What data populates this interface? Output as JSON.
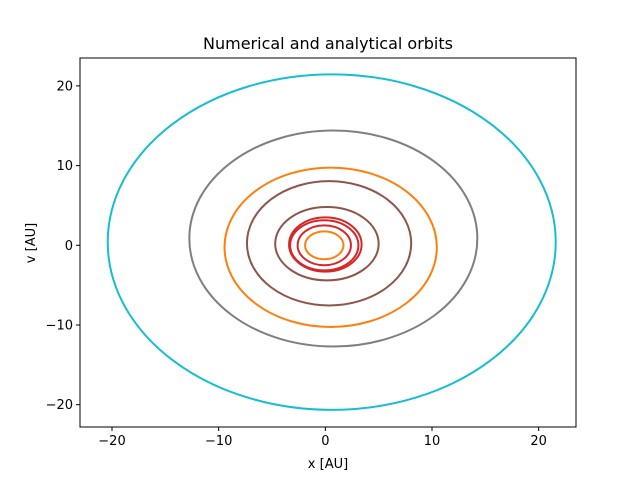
{
  "chart_data": {
    "type": "line",
    "title": "Numerical and analytical orbits",
    "xlabel": "x [AU]",
    "ylabel": "v [AU]",
    "xlim": [
      -23,
      23.5
    ],
    "ylim": [
      -22.8,
      23.5
    ],
    "xticks": [
      -20,
      -10,
      0,
      10,
      20
    ],
    "yticks": [
      -20,
      -10,
      0,
      10,
      20
    ],
    "xtick_labels": [
      "−20",
      "−10",
      "0",
      "10",
      "20"
    ],
    "ytick_labels": [
      "−20",
      "−10",
      "0",
      "10",
      "20"
    ],
    "grid": false,
    "series": [
      {
        "color": "#ff7f0e",
        "cx": -0.1,
        "cy": 0.0,
        "rx": 1.8,
        "ry": 1.75
      },
      {
        "color": "#d62728",
        "cx": -0.1,
        "cy": 0.0,
        "rx": 2.5,
        "ry": 2.5
      },
      {
        "color": "#d62728",
        "cx": -0.1,
        "cy": 0.0,
        "rx": 3.2,
        "ry": 3.15
      },
      {
        "color": "#d62728",
        "cx": 0.0,
        "cy": 0.1,
        "rx": 3.4,
        "ry": 3.4
      },
      {
        "color": "#8c564b",
        "cx": 0.15,
        "cy": 0.2,
        "rx": 4.85,
        "ry": 4.6
      },
      {
        "color": "#8c564b",
        "cx": 0.35,
        "cy": 0.25,
        "rx": 7.7,
        "ry": 7.8
      },
      {
        "color": "#ff7f0e",
        "cx": 0.5,
        "cy": -0.25,
        "rx": 9.95,
        "ry": 10.0
      },
      {
        "color": "#7f7f7f",
        "cx": 0.75,
        "cy": 0.85,
        "rx": 13.5,
        "ry": 13.55
      },
      {
        "color": "#17becf",
        "cx": 0.6,
        "cy": 0.4,
        "rx": 21.0,
        "ry": 21.05
      }
    ]
  }
}
